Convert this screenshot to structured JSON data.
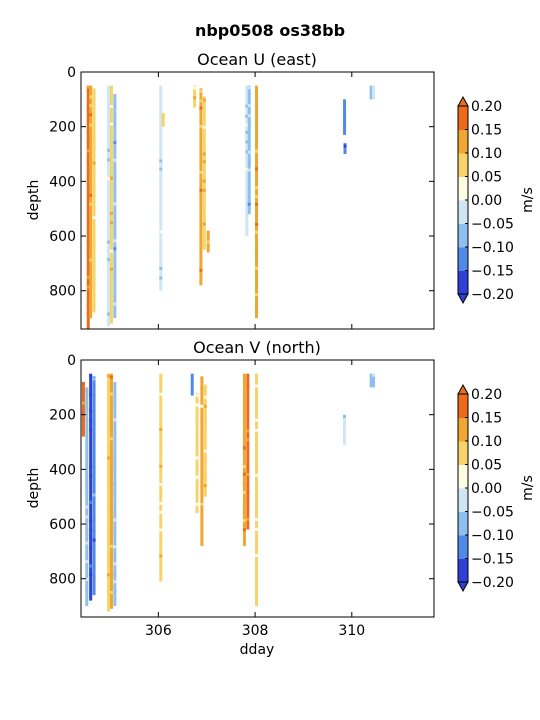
{
  "figure": {
    "suptitle": "nbp0508 os38bb"
  },
  "chart_data": [
    {
      "type": "heatmap",
      "title": "Ocean U (east)",
      "xlabel": "",
      "ylabel": "depth",
      "xlim": [
        304.4,
        311.7
      ],
      "ylim": [
        940,
        0
      ],
      "xticks": [
        306,
        308,
        310
      ],
      "xtick_labels": [],
      "yticks": [
        0,
        200,
        400,
        600,
        800
      ],
      "ytick_labels": [
        "0",
        "200",
        "400",
        "600",
        "800"
      ],
      "colorbar": {
        "label": "m/s",
        "levels": [
          -0.2,
          -0.15,
          -0.1,
          -0.05,
          0.0,
          0.05,
          0.1,
          0.15,
          0.2
        ],
        "tick_labels": [
          "−0.20",
          "−0.15",
          "−0.10",
          "−0.05",
          "0.00",
          "0.05",
          "0.10",
          "0.15",
          "0.20"
        ],
        "colors": [
          "#2f3fd8",
          "#4f8ae8",
          "#8ec0ee",
          "#cfe7f4",
          "#fffbe0",
          "#f7d46a",
          "#f0a630",
          "#ec6a1d"
        ]
      },
      "profiles": [
        {
          "x": 304.55,
          "depth": [
            50,
            940
          ],
          "value": 0.18
        },
        {
          "x": 304.6,
          "depth": [
            50,
            900
          ],
          "value": 0.13
        },
        {
          "x": 304.67,
          "depth": [
            60,
            880
          ],
          "value": 0.08
        },
        {
          "x": 304.97,
          "depth": [
            50,
            930
          ],
          "value": -0.04
        },
        {
          "x": 305.03,
          "depth": [
            50,
            920
          ],
          "value": 0.08
        },
        {
          "x": 305.1,
          "depth": [
            80,
            900
          ],
          "value": -0.06
        },
        {
          "x": 306.05,
          "depth": [
            50,
            800
          ],
          "value": -0.03
        },
        {
          "x": 306.1,
          "depth": [
            150,
            200
          ],
          "value": 0.07
        },
        {
          "x": 306.75,
          "depth": [
            50,
            130
          ],
          "value": 0.06
        },
        {
          "x": 306.88,
          "depth": [
            60,
            780
          ],
          "value": 0.12
        },
        {
          "x": 306.95,
          "depth": [
            90,
            650
          ],
          "value": 0.07
        },
        {
          "x": 307.03,
          "depth": [
            580,
            660
          ],
          "value": 0.11
        },
        {
          "x": 307.83,
          "depth": [
            50,
            600
          ],
          "value": -0.04
        },
        {
          "x": 307.88,
          "depth": [
            50,
            520
          ],
          "value": -0.06
        },
        {
          "x": 308.03,
          "depth": [
            50,
            900
          ],
          "value": 0.11
        },
        {
          "x": 309.85,
          "depth": [
            100,
            230
          ],
          "value": -0.12
        },
        {
          "x": 309.86,
          "depth": [
            260,
            300
          ],
          "value": -0.12
        },
        {
          "x": 310.4,
          "depth": [
            50,
            100
          ],
          "value": -0.08
        },
        {
          "x": 310.45,
          "depth": [
            50,
            100
          ],
          "value": -0.05
        }
      ]
    },
    {
      "type": "heatmap",
      "title": "Ocean V (north)",
      "xlabel": "dday",
      "ylabel": "depth",
      "xlim": [
        304.4,
        311.7
      ],
      "ylim": [
        940,
        0
      ],
      "xticks": [
        306,
        308,
        310
      ],
      "xtick_labels": [
        "306",
        "308",
        "310"
      ],
      "yticks": [
        0,
        200,
        400,
        600,
        800
      ],
      "ytick_labels": [
        "0",
        "200",
        "400",
        "600",
        "800"
      ],
      "colorbar": {
        "label": "m/s",
        "levels": [
          -0.2,
          -0.15,
          -0.1,
          -0.05,
          0.0,
          0.05,
          0.1,
          0.15,
          0.2
        ],
        "tick_labels": [
          "−0.20",
          "−0.15",
          "−0.10",
          "−0.05",
          "0.00",
          "0.05",
          "0.10",
          "0.15",
          "0.20"
        ],
        "colors": [
          "#2f3fd8",
          "#4f8ae8",
          "#8ec0ee",
          "#cfe7f4",
          "#fffbe0",
          "#f7d46a",
          "#f0a630",
          "#ec6a1d"
        ]
      },
      "profiles": [
        {
          "x": 304.45,
          "depth": [
            80,
            280
          ],
          "value": 0.16
        },
        {
          "x": 304.52,
          "depth": [
            100,
            900
          ],
          "value": -0.07
        },
        {
          "x": 304.6,
          "depth": [
            50,
            880
          ],
          "value": -0.19
        },
        {
          "x": 304.67,
          "depth": [
            60,
            860
          ],
          "value": -0.12
        },
        {
          "x": 304.97,
          "depth": [
            50,
            920
          ],
          "value": 0.07
        },
        {
          "x": 305.03,
          "depth": [
            50,
            910
          ],
          "value": 0.1
        },
        {
          "x": 305.1,
          "depth": [
            80,
            900
          ],
          "value": -0.06
        },
        {
          "x": 306.05,
          "depth": [
            50,
            810
          ],
          "value": 0.07
        },
        {
          "x": 306.7,
          "depth": [
            50,
            130
          ],
          "value": -0.12
        },
        {
          "x": 306.8,
          "depth": [
            120,
            560
          ],
          "value": 0.06
        },
        {
          "x": 306.9,
          "depth": [
            60,
            680
          ],
          "value": 0.1
        },
        {
          "x": 306.97,
          "depth": [
            90,
            500
          ],
          "value": 0.07
        },
        {
          "x": 307.78,
          "depth": [
            50,
            680
          ],
          "value": 0.11
        },
        {
          "x": 307.85,
          "depth": [
            50,
            620
          ],
          "value": 0.16
        },
        {
          "x": 308.03,
          "depth": [
            50,
            900
          ],
          "value": 0.06
        },
        {
          "x": 309.85,
          "depth": [
            200,
            310
          ],
          "value": -0.03
        },
        {
          "x": 310.4,
          "depth": [
            50,
            100
          ],
          "value": -0.1
        },
        {
          "x": 310.45,
          "depth": [
            50,
            100
          ],
          "value": -0.06
        }
      ]
    }
  ]
}
